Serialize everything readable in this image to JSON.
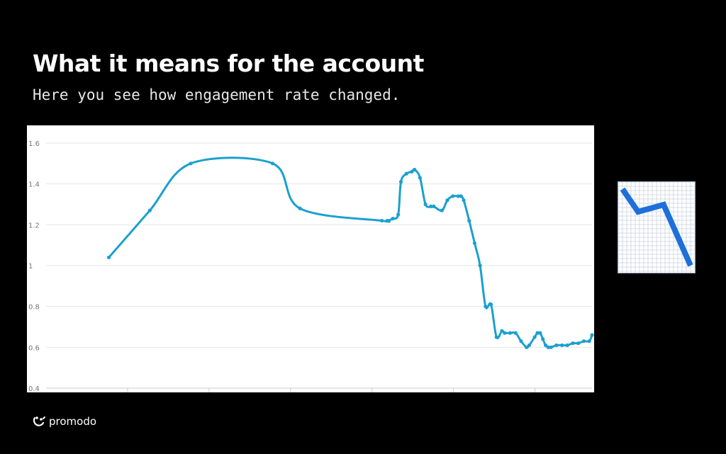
{
  "slide": {
    "title": "What it means for the account",
    "subtitle": "Here you see how engagement rate changed."
  },
  "brand": {
    "name": "promodo",
    "logo_icon": "promodo-logo-icon"
  },
  "emoji": {
    "icon": "chart-decreasing-icon",
    "line_color": "#1e6fd9",
    "grid_color": "#c9d3de"
  },
  "colors": {
    "background": "#000000",
    "line": "#1aa0cf",
    "grid": "#e6e6e6",
    "tick_text": "#777777"
  },
  "chart_data": {
    "type": "line",
    "ylim": [
      0.4,
      1.6
    ],
    "yticks": [
      "1.6",
      "1.4",
      "1.2",
      "1",
      "0.8",
      "0.6",
      "0.4"
    ],
    "grid": true,
    "xlim": [
      0,
      100
    ],
    "x_tick_count": 6,
    "series": [
      {
        "x": [
          11.5,
          19,
          26.5,
          41.5,
          46.5,
          61.5,
          62.5,
          63.5,
          64.5,
          65,
          66,
          67,
          67.5,
          68.5,
          69.5,
          70.5,
          71,
          72.5,
          73.5,
          74.5,
          75.5,
          76,
          76.5,
          77.5,
          78.5,
          79.5,
          80.5,
          81.5,
          82.5,
          83.5,
          84,
          85,
          86,
          87,
          88,
          88.5,
          89.5,
          90,
          90.5,
          91,
          91.5,
          92,
          92.5,
          93.5,
          94.5,
          95.5,
          96.5,
          97.5,
          98.5,
          99.5,
          100
        ],
        "y": [
          1.04,
          1.27,
          1.5,
          1.5,
          1.28,
          1.22,
          1.22,
          1.23,
          1.25,
          1.41,
          1.45,
          1.46,
          1.47,
          1.43,
          1.3,
          1.29,
          1.29,
          1.27,
          1.32,
          1.34,
          1.34,
          1.34,
          1.32,
          1.22,
          1.11,
          1.0,
          0.8,
          0.81,
          0.65,
          0.68,
          0.67,
          0.67,
          0.67,
          0.63,
          0.6,
          0.61,
          0.65,
          0.67,
          0.67,
          0.64,
          0.61,
          0.6,
          0.6,
          0.61,
          0.61,
          0.61,
          0.62,
          0.62,
          0.63,
          0.63,
          0.66
        ]
      }
    ]
  }
}
